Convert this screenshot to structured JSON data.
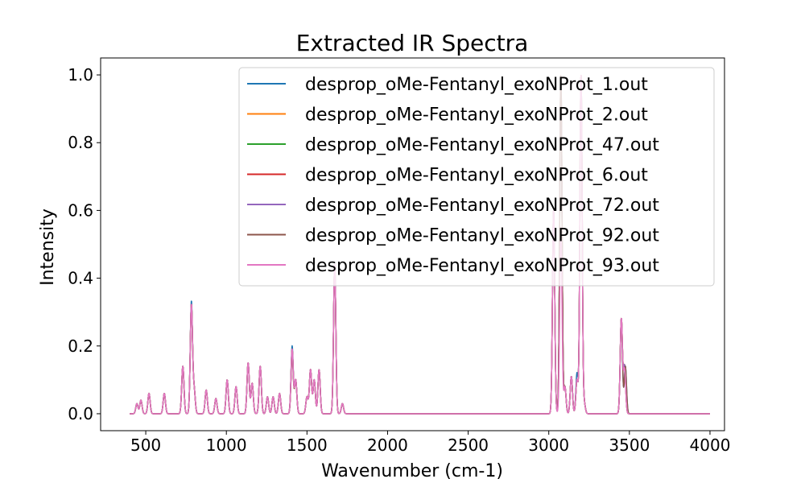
{
  "chart_data": {
    "type": "line",
    "title": "Extracted IR Spectra",
    "xlabel": "Wavenumber (cm-1)",
    "ylabel": "Intensity",
    "xlim": [
      220,
      4090
    ],
    "ylim": [
      -0.05,
      1.05
    ],
    "xticks": [
      500,
      1000,
      1500,
      2000,
      2500,
      3000,
      3500,
      4000
    ],
    "yticks": [
      0.0,
      0.2,
      0.4,
      0.6,
      0.8,
      1.0
    ],
    "xtick_labels": [
      "500",
      "1000",
      "1500",
      "2000",
      "2500",
      "3000",
      "3500",
      "4000"
    ],
    "ytick_labels": [
      "0.0",
      "0.2",
      "0.4",
      "0.6",
      "0.8",
      "1.0"
    ],
    "grid": false,
    "legend_position": "top-right",
    "line_width": 1.5,
    "peak_width": 7,
    "x_range": [
      400,
      4000
    ],
    "series": [
      {
        "name": "desprop_oMe-Fentanyl_exoNProt_1.out",
        "color": "#1f77b4",
        "peaks": [
          [
            445,
            0.03
          ],
          [
            470,
            0.04
          ],
          [
            520,
            0.06
          ],
          [
            615,
            0.06
          ],
          [
            730,
            0.14
          ],
          [
            783,
            0.33
          ],
          [
            800,
            0.07
          ],
          [
            875,
            0.07
          ],
          [
            935,
            0.045
          ],
          [
            1005,
            0.1
          ],
          [
            1060,
            0.08
          ],
          [
            1135,
            0.15
          ],
          [
            1160,
            0.09
          ],
          [
            1210,
            0.14
          ],
          [
            1255,
            0.05
          ],
          [
            1290,
            0.05
          ],
          [
            1330,
            0.06
          ],
          [
            1408,
            0.2
          ],
          [
            1430,
            0.1
          ],
          [
            1500,
            0.05
          ],
          [
            1522,
            0.13
          ],
          [
            1545,
            0.1
          ],
          [
            1575,
            0.13
          ],
          [
            1672,
            0.44
          ],
          [
            1720,
            0.03
          ],
          [
            3030,
            0.6
          ],
          [
            3075,
            1.0
          ],
          [
            3100,
            0.08
          ],
          [
            3140,
            0.11
          ],
          [
            3175,
            0.12
          ],
          [
            3200,
            1.0
          ],
          [
            3220,
            0.03
          ],
          [
            3450,
            0.28
          ],
          [
            3475,
            0.14
          ]
        ]
      },
      {
        "name": "desprop_oMe-Fentanyl_exoNProt_2.out",
        "color": "#ff7f0e",
        "peaks": [
          [
            445,
            0.03
          ],
          [
            470,
            0.04
          ],
          [
            520,
            0.06
          ],
          [
            615,
            0.06
          ],
          [
            730,
            0.14
          ],
          [
            783,
            0.32
          ],
          [
            800,
            0.07
          ],
          [
            875,
            0.07
          ],
          [
            935,
            0.045
          ],
          [
            1005,
            0.1
          ],
          [
            1060,
            0.08
          ],
          [
            1135,
            0.15
          ],
          [
            1160,
            0.09
          ],
          [
            1210,
            0.14
          ],
          [
            1255,
            0.05
          ],
          [
            1290,
            0.05
          ],
          [
            1330,
            0.06
          ],
          [
            1408,
            0.19
          ],
          [
            1430,
            0.1
          ],
          [
            1500,
            0.05
          ],
          [
            1522,
            0.13
          ],
          [
            1545,
            0.1
          ],
          [
            1575,
            0.13
          ],
          [
            1672,
            0.44
          ],
          [
            1720,
            0.03
          ],
          [
            3030,
            0.6
          ],
          [
            3075,
            1.0
          ],
          [
            3100,
            0.08
          ],
          [
            3140,
            0.11
          ],
          [
            3175,
            0.1
          ],
          [
            3200,
            1.0
          ],
          [
            3220,
            0.03
          ],
          [
            3450,
            0.28
          ],
          [
            3470,
            0.14
          ]
        ]
      },
      {
        "name": "desprop_oMe-Fentanyl_exoNProt_47.out",
        "color": "#2ca02c",
        "peaks": [
          [
            445,
            0.03
          ],
          [
            470,
            0.04
          ],
          [
            520,
            0.06
          ],
          [
            615,
            0.06
          ],
          [
            730,
            0.14
          ],
          [
            783,
            0.32
          ],
          [
            800,
            0.07
          ],
          [
            875,
            0.07
          ],
          [
            935,
            0.045
          ],
          [
            1005,
            0.1
          ],
          [
            1060,
            0.08
          ],
          [
            1135,
            0.15
          ],
          [
            1160,
            0.09
          ],
          [
            1210,
            0.14
          ],
          [
            1255,
            0.05
          ],
          [
            1290,
            0.05
          ],
          [
            1330,
            0.06
          ],
          [
            1408,
            0.19
          ],
          [
            1430,
            0.1
          ],
          [
            1500,
            0.05
          ],
          [
            1522,
            0.13
          ],
          [
            1545,
            0.1
          ],
          [
            1575,
            0.13
          ],
          [
            1672,
            0.44
          ],
          [
            1720,
            0.03
          ],
          [
            3030,
            0.6
          ],
          [
            3075,
            1.0
          ],
          [
            3100,
            0.08
          ],
          [
            3140,
            0.11
          ],
          [
            3175,
            0.1
          ],
          [
            3200,
            1.0
          ],
          [
            3220,
            0.03
          ],
          [
            3450,
            0.28
          ],
          [
            3470,
            0.14
          ]
        ]
      },
      {
        "name": "desprop_oMe-Fentanyl_exoNProt_6.out",
        "color": "#d62728",
        "peaks": [
          [
            445,
            0.03
          ],
          [
            470,
            0.04
          ],
          [
            520,
            0.06
          ],
          [
            615,
            0.06
          ],
          [
            730,
            0.14
          ],
          [
            783,
            0.32
          ],
          [
            800,
            0.07
          ],
          [
            875,
            0.07
          ],
          [
            935,
            0.045
          ],
          [
            1005,
            0.1
          ],
          [
            1060,
            0.08
          ],
          [
            1135,
            0.15
          ],
          [
            1160,
            0.09
          ],
          [
            1210,
            0.14
          ],
          [
            1255,
            0.05
          ],
          [
            1290,
            0.05
          ],
          [
            1330,
            0.06
          ],
          [
            1408,
            0.19
          ],
          [
            1430,
            0.1
          ],
          [
            1500,
            0.05
          ],
          [
            1522,
            0.13
          ],
          [
            1545,
            0.1
          ],
          [
            1575,
            0.13
          ],
          [
            1672,
            0.44
          ],
          [
            1720,
            0.03
          ],
          [
            3030,
            0.6
          ],
          [
            3075,
            1.0
          ],
          [
            3100,
            0.08
          ],
          [
            3140,
            0.11
          ],
          [
            3175,
            0.1
          ],
          [
            3200,
            1.0
          ],
          [
            3220,
            0.03
          ],
          [
            3450,
            0.28
          ],
          [
            3470,
            0.14
          ]
        ]
      },
      {
        "name": "desprop_oMe-Fentanyl_exoNProt_72.out",
        "color": "#9467bd",
        "peaks": [
          [
            445,
            0.03
          ],
          [
            470,
            0.04
          ],
          [
            520,
            0.06
          ],
          [
            615,
            0.06
          ],
          [
            730,
            0.14
          ],
          [
            783,
            0.32
          ],
          [
            800,
            0.07
          ],
          [
            875,
            0.07
          ],
          [
            935,
            0.045
          ],
          [
            1005,
            0.1
          ],
          [
            1060,
            0.08
          ],
          [
            1135,
            0.15
          ],
          [
            1160,
            0.09
          ],
          [
            1210,
            0.14
          ],
          [
            1255,
            0.05
          ],
          [
            1290,
            0.05
          ],
          [
            1330,
            0.06
          ],
          [
            1408,
            0.19
          ],
          [
            1430,
            0.1
          ],
          [
            1500,
            0.05
          ],
          [
            1522,
            0.13
          ],
          [
            1545,
            0.1
          ],
          [
            1575,
            0.13
          ],
          [
            1672,
            0.44
          ],
          [
            1720,
            0.03
          ],
          [
            3030,
            0.6
          ],
          [
            3075,
            1.0
          ],
          [
            3100,
            0.08
          ],
          [
            3140,
            0.11
          ],
          [
            3175,
            0.1
          ],
          [
            3200,
            1.0
          ],
          [
            3220,
            0.03
          ],
          [
            3450,
            0.28
          ],
          [
            3470,
            0.14
          ]
        ]
      },
      {
        "name": "desprop_oMe-Fentanyl_exoNProt_92.out",
        "color": "#8c564b",
        "peaks": [
          [
            445,
            0.03
          ],
          [
            470,
            0.04
          ],
          [
            520,
            0.06
          ],
          [
            615,
            0.06
          ],
          [
            730,
            0.14
          ],
          [
            783,
            0.32
          ],
          [
            800,
            0.07
          ],
          [
            875,
            0.07
          ],
          [
            935,
            0.045
          ],
          [
            1005,
            0.1
          ],
          [
            1060,
            0.08
          ],
          [
            1135,
            0.15
          ],
          [
            1160,
            0.09
          ],
          [
            1210,
            0.14
          ],
          [
            1255,
            0.05
          ],
          [
            1290,
            0.05
          ],
          [
            1330,
            0.06
          ],
          [
            1408,
            0.17
          ],
          [
            1430,
            0.1
          ],
          [
            1500,
            0.05
          ],
          [
            1522,
            0.13
          ],
          [
            1545,
            0.1
          ],
          [
            1575,
            0.13
          ],
          [
            1672,
            0.44
          ],
          [
            1720,
            0.03
          ],
          [
            3030,
            0.6
          ],
          [
            3075,
            1.0
          ],
          [
            3100,
            0.08
          ],
          [
            3140,
            0.11
          ],
          [
            3175,
            0.1
          ],
          [
            3200,
            1.0
          ],
          [
            3220,
            0.03
          ],
          [
            3450,
            0.28
          ],
          [
            3475,
            0.14
          ]
        ]
      },
      {
        "name": "desprop_oMe-Fentanyl_exoNProt_93.out",
        "color": "#e377c2",
        "peaks": [
          [
            445,
            0.03
          ],
          [
            470,
            0.04
          ],
          [
            520,
            0.06
          ],
          [
            615,
            0.06
          ],
          [
            730,
            0.14
          ],
          [
            783,
            0.32
          ],
          [
            800,
            0.07
          ],
          [
            875,
            0.07
          ],
          [
            935,
            0.045
          ],
          [
            1005,
            0.1
          ],
          [
            1060,
            0.08
          ],
          [
            1135,
            0.15
          ],
          [
            1160,
            0.09
          ],
          [
            1210,
            0.14
          ],
          [
            1255,
            0.05
          ],
          [
            1290,
            0.05
          ],
          [
            1330,
            0.06
          ],
          [
            1408,
            0.19
          ],
          [
            1430,
            0.1
          ],
          [
            1500,
            0.05
          ],
          [
            1522,
            0.13
          ],
          [
            1545,
            0.1
          ],
          [
            1575,
            0.13
          ],
          [
            1672,
            0.44
          ],
          [
            1720,
            0.03
          ],
          [
            3030,
            0.6
          ],
          [
            3075,
            0.55
          ],
          [
            3100,
            0.08
          ],
          [
            3140,
            0.11
          ],
          [
            3175,
            0.1
          ],
          [
            3200,
            1.0
          ],
          [
            3220,
            0.03
          ],
          [
            3450,
            0.28
          ],
          [
            3470,
            0.13
          ]
        ]
      }
    ]
  }
}
